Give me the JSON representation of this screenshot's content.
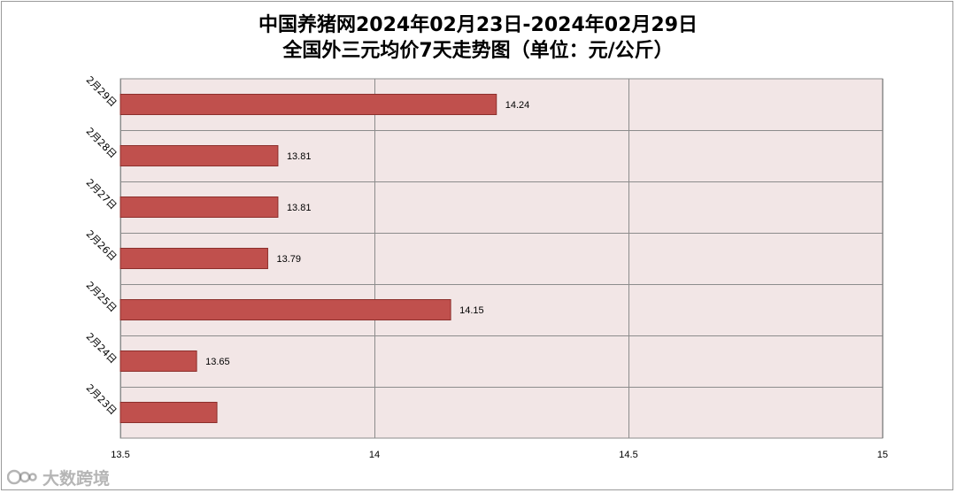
{
  "chart_data": {
    "type": "bar",
    "orientation": "horizontal",
    "title_lines": [
      "中国养猪网2024年02月23日-2024年02月29日",
      "全国外三元均价7天走势图（单位：元/公斤）"
    ],
    "categories": [
      "2月29日",
      "2月28日",
      "2月27日",
      "2月26日",
      "2月25日",
      "2月24日",
      "2月23日"
    ],
    "values": [
      14.24,
      13.81,
      13.81,
      13.79,
      14.15,
      13.65,
      13.69
    ],
    "data_labels": [
      "14.24",
      "13.81",
      "13.81",
      "13.79",
      "14.15",
      "13.65",
      ""
    ],
    "xlim": [
      13.5,
      15
    ],
    "xticks": [
      13.5,
      14,
      14.5,
      15
    ],
    "xtick_labels": [
      "13.5",
      "14",
      "14.5",
      "15"
    ],
    "grid": true,
    "legend": false
  },
  "watermark": {
    "text": "大数跨境"
  },
  "colors": {
    "bar_fill": "#c0504d",
    "bar_stroke": "#8c2f2c",
    "plot_background": "#f2e6e6",
    "grid": "#8c8c8c",
    "plot_border": "#8c8c8c"
  }
}
